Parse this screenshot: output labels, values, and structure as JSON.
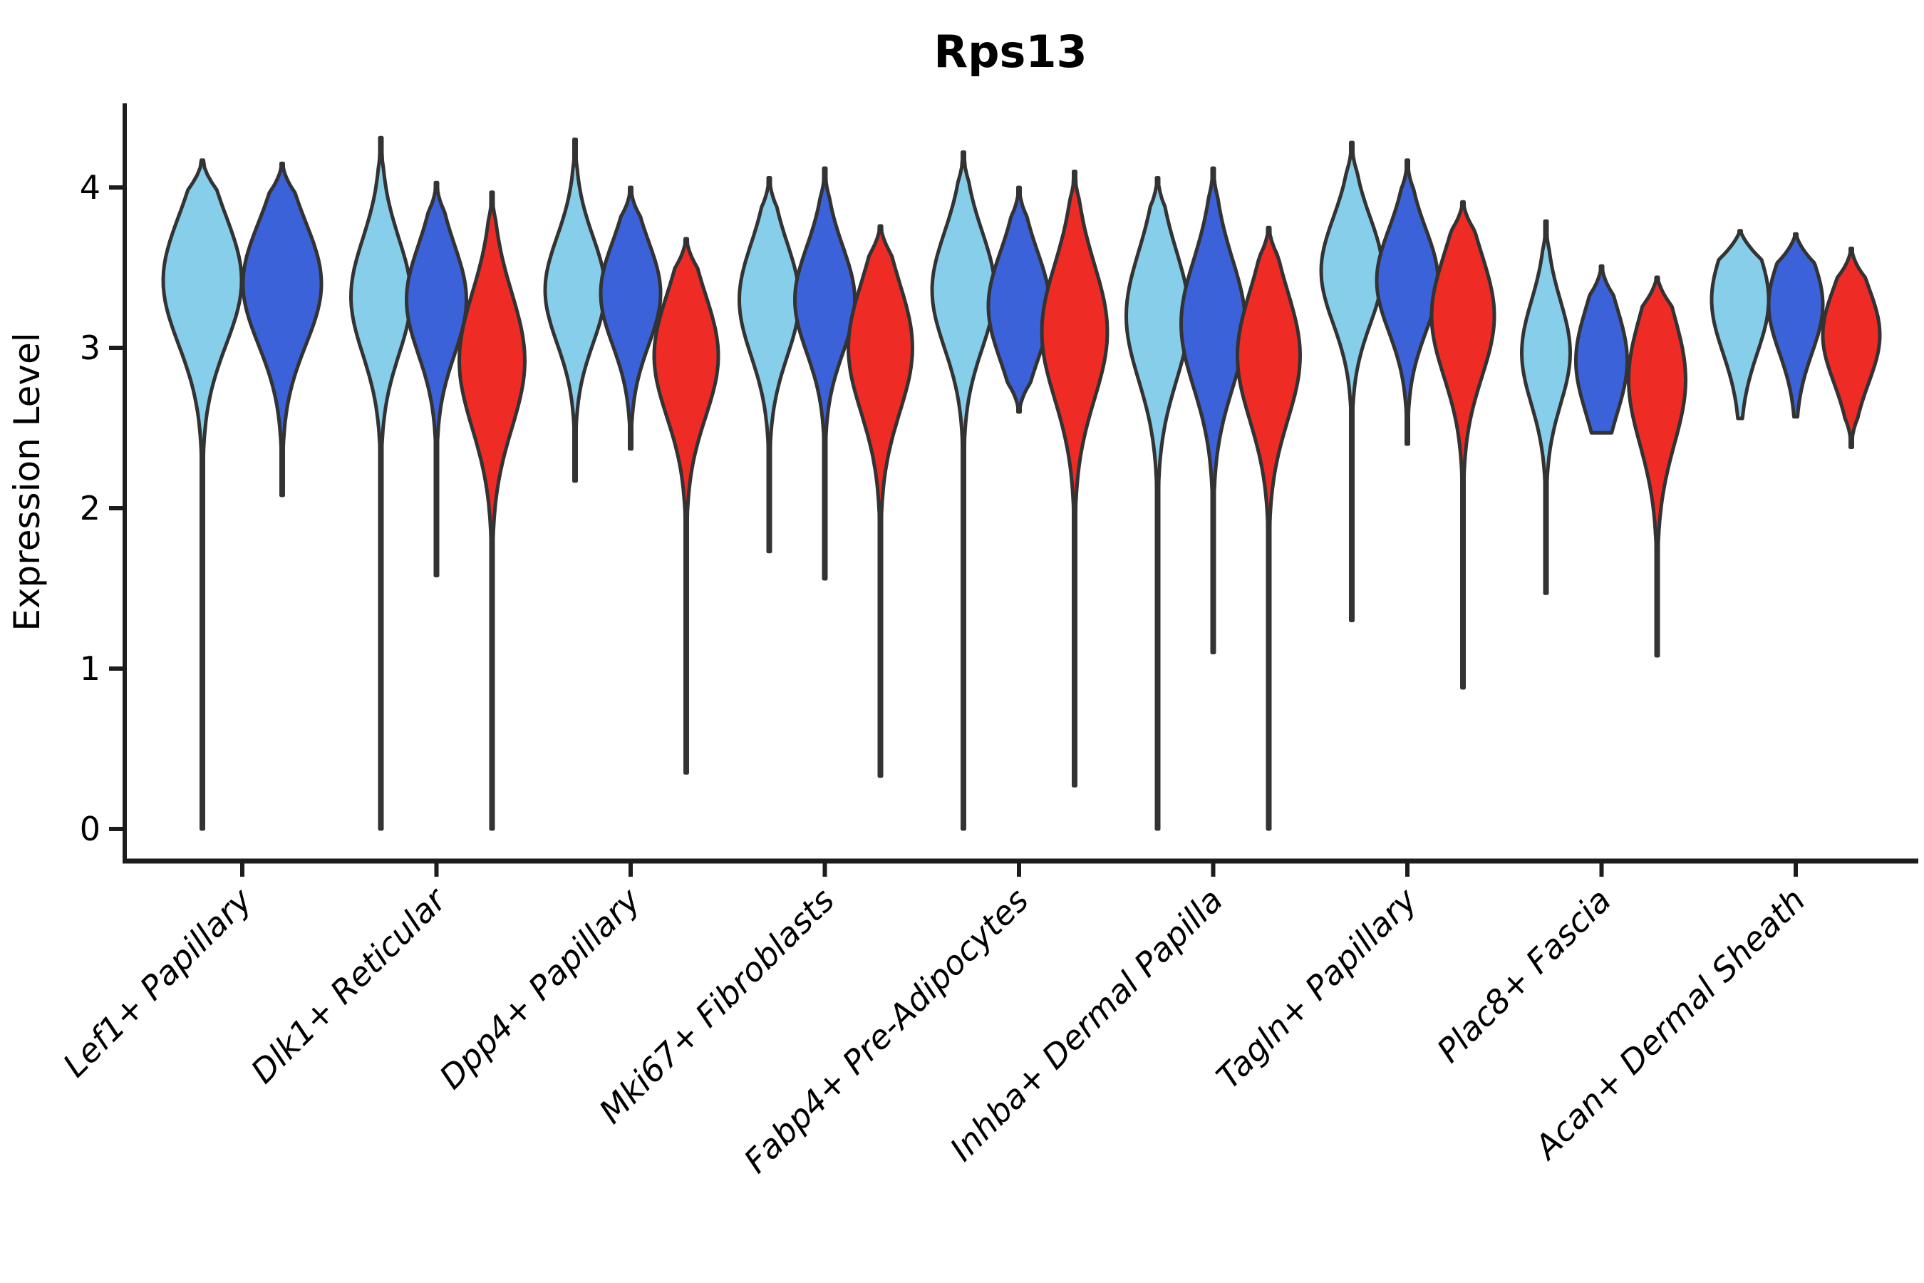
{
  "title": "Rps13",
  "chart_data": {
    "type": "violin",
    "title": "Rps13",
    "xlabel": "",
    "ylabel": "Expression Level",
    "ylim": [
      0,
      4.5
    ],
    "grid": false,
    "legend": "none",
    "y_tick_values": [
      0,
      1,
      2,
      3,
      4
    ],
    "y_tick_labels": [
      "0",
      "1",
      "2",
      "3",
      "4"
    ],
    "categories": [
      "Lef1+ Papillary",
      "Dlk1+ Reticular",
      "Dpp4+ Papillary",
      "Mki67+ Fibroblasts",
      "Fabp4+ Pre-Adipocytes",
      "Inhba+ Dermal Papilla",
      "Tagln+ Papillary",
      "Plac8+ Fascia",
      "Acan+ Dermal Sheath"
    ],
    "series_colors": [
      "#87CEEB",
      "#3B62D9",
      "#EF2B26"
    ],
    "series_names": [
      "sky-blue",
      "royal-blue",
      "red"
    ],
    "outline_color": "#333333",
    "violins": [
      {
        "category": 0,
        "series": 0,
        "peak": 3.42,
        "spread": 0.4,
        "min": 0.0,
        "max": 4.17,
        "max_width": 55,
        "flat_bottom": false
      },
      {
        "category": 0,
        "series": 1,
        "peak": 3.4,
        "spread": 0.38,
        "min": 2.08,
        "max": 4.15,
        "max_width": 55,
        "flat_bottom": false
      },
      {
        "category": 1,
        "series": 0,
        "peak": 3.32,
        "spread": 0.36,
        "min": 0.0,
        "max": 4.31,
        "max_width": 42,
        "flat_bottom": false
      },
      {
        "category": 1,
        "series": 1,
        "peak": 3.3,
        "spread": 0.34,
        "min": 1.58,
        "max": 4.03,
        "max_width": 42,
        "flat_bottom": false
      },
      {
        "category": 1,
        "series": 2,
        "peak": 2.92,
        "spread": 0.42,
        "min": 0.0,
        "max": 3.97,
        "max_width": 46,
        "flat_bottom": false
      },
      {
        "category": 2,
        "series": 0,
        "peak": 3.36,
        "spread": 0.33,
        "min": 2.17,
        "max": 4.3,
        "max_width": 42,
        "flat_bottom": false
      },
      {
        "category": 2,
        "series": 1,
        "peak": 3.34,
        "spread": 0.32,
        "min": 2.37,
        "max": 4.0,
        "max_width": 42,
        "flat_bottom": false
      },
      {
        "category": 2,
        "series": 2,
        "peak": 2.95,
        "spread": 0.38,
        "min": 0.35,
        "max": 3.68,
        "max_width": 45,
        "flat_bottom": false
      },
      {
        "category": 3,
        "series": 0,
        "peak": 3.3,
        "spread": 0.35,
        "min": 1.73,
        "max": 4.06,
        "max_width": 42,
        "flat_bottom": false
      },
      {
        "category": 3,
        "series": 1,
        "peak": 3.3,
        "spread": 0.33,
        "min": 1.56,
        "max": 4.12,
        "max_width": 42,
        "flat_bottom": false
      },
      {
        "category": 3,
        "series": 2,
        "peak": 3.0,
        "spread": 0.4,
        "min": 0.33,
        "max": 3.76,
        "max_width": 45,
        "flat_bottom": false
      },
      {
        "category": 4,
        "series": 0,
        "peak": 3.36,
        "spread": 0.36,
        "min": 0.0,
        "max": 4.22,
        "max_width": 44,
        "flat_bottom": false
      },
      {
        "category": 4,
        "series": 1,
        "peak": 3.26,
        "spread": 0.34,
        "min": 2.6,
        "max": 4.0,
        "max_width": 43,
        "flat_bottom": false
      },
      {
        "category": 4,
        "series": 2,
        "peak": 3.1,
        "spread": 0.42,
        "min": 0.27,
        "max": 4.1,
        "max_width": 46,
        "flat_bottom": false
      },
      {
        "category": 5,
        "series": 0,
        "peak": 3.2,
        "spread": 0.4,
        "min": 0.0,
        "max": 4.06,
        "max_width": 44,
        "flat_bottom": false
      },
      {
        "category": 5,
        "series": 1,
        "peak": 3.15,
        "spread": 0.4,
        "min": 1.1,
        "max": 4.12,
        "max_width": 45,
        "flat_bottom": false
      },
      {
        "category": 5,
        "series": 2,
        "peak": 2.95,
        "spread": 0.4,
        "min": 0.0,
        "max": 3.75,
        "max_width": 44,
        "flat_bottom": false
      },
      {
        "category": 6,
        "series": 0,
        "peak": 3.48,
        "spread": 0.33,
        "min": 1.3,
        "max": 4.28,
        "max_width": 43,
        "flat_bottom": false
      },
      {
        "category": 6,
        "series": 1,
        "peak": 3.42,
        "spread": 0.32,
        "min": 2.4,
        "max": 4.17,
        "max_width": 43,
        "flat_bottom": false
      },
      {
        "category": 6,
        "series": 2,
        "peak": 3.2,
        "spread": 0.38,
        "min": 0.88,
        "max": 3.91,
        "max_width": 44,
        "flat_bottom": false
      },
      {
        "category": 7,
        "series": 0,
        "peak": 2.97,
        "spread": 0.32,
        "min": 1.47,
        "max": 3.79,
        "max_width": 34,
        "flat_bottom": false
      },
      {
        "category": 7,
        "series": 1,
        "peak": 2.92,
        "spread": 0.33,
        "min": 2.47,
        "max": 3.51,
        "max_width": 36,
        "flat_bottom": true
      },
      {
        "category": 7,
        "series": 2,
        "peak": 2.8,
        "spread": 0.4,
        "min": 1.08,
        "max": 3.44,
        "max_width": 40,
        "flat_bottom": false
      },
      {
        "category": 8,
        "series": 0,
        "peak": 3.3,
        "spread": 0.33,
        "min": 2.56,
        "max": 3.73,
        "max_width": 40,
        "flat_bottom": true
      },
      {
        "category": 8,
        "series": 1,
        "peak": 3.27,
        "spread": 0.3,
        "min": 2.57,
        "max": 3.71,
        "max_width": 38,
        "flat_bottom": true
      },
      {
        "category": 8,
        "series": 2,
        "peak": 3.08,
        "spread": 0.3,
        "min": 2.38,
        "max": 3.62,
        "max_width": 40,
        "flat_bottom": false
      }
    ]
  }
}
